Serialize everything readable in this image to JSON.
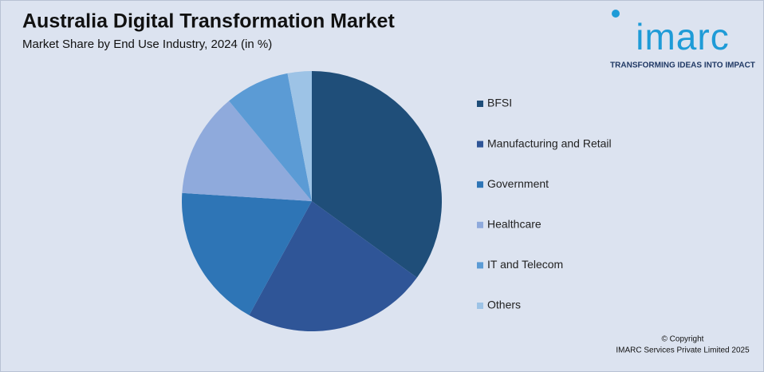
{
  "chart_data": {
    "type": "pie",
    "title": "Australia Digital Transformation Market",
    "subtitle": "Market Share by End Use Industry, 2024 (in %)",
    "categories": [
      "BFSI",
      "Manufacturing and Retail",
      "Government",
      "Healthcare",
      "IT and Telecom",
      "Others"
    ],
    "values": [
      35,
      23,
      18,
      13,
      8,
      3
    ],
    "colors": [
      "#1f4e79",
      "#2f5597",
      "#2e75b6",
      "#8faadc",
      "#5b9bd5",
      "#9dc3e6"
    ],
    "legend": "right"
  },
  "logo": {
    "name": "imarc",
    "tagline": "TRANSFORMING IDEAS INTO IMPACT"
  },
  "footer": {
    "copyright": "© Copyright",
    "company": "IMARC Services Private Limited 2025"
  }
}
